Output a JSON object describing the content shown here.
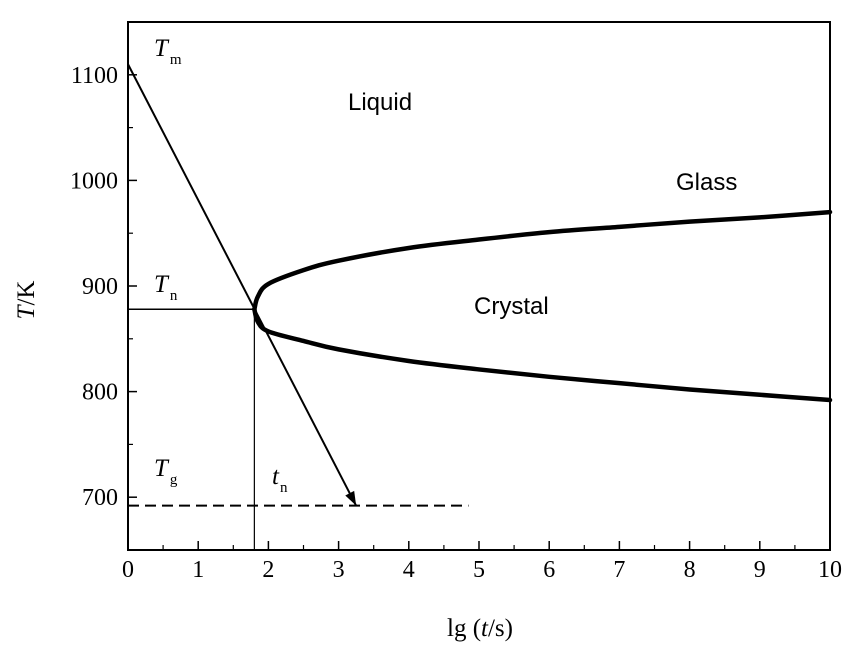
{
  "chart_data": {
    "type": "line",
    "xlabel_prefix": "lg (",
    "xlabel_var": "t",
    "xlabel_suffix": "/s)",
    "ylabel_var": "T",
    "ylabel_unit": "/K",
    "xlim": [
      0,
      10
    ],
    "ylim": [
      650,
      1150
    ],
    "x_ticks": [
      0,
      1,
      2,
      3,
      4,
      5,
      6,
      7,
      8,
      9,
      10
    ],
    "y_ticks": [
      700,
      800,
      900,
      1000,
      1100
    ],
    "grid": false,
    "regions": {
      "liquid": "Liquid",
      "glass": "Glass",
      "crystal": "Crystal"
    },
    "symbols": {
      "tm": {
        "base": "T",
        "sub": "m"
      },
      "tn": {
        "base": "T",
        "sub": "n"
      },
      "tg": {
        "base": "T",
        "sub": "g"
      },
      "t_n": {
        "base": "t",
        "sub": "n"
      }
    },
    "cooling_line": {
      "x": [
        0,
        3.25
      ],
      "y": [
        1110,
        692
      ]
    },
    "nose": {
      "x": 1.8,
      "y": 878
    },
    "tn_level": 878,
    "tg_level": 692,
    "tg_line_x_end": 4.85,
    "upper_curve": {
      "x": [
        1.8,
        1.85,
        2.0,
        2.5,
        3,
        4,
        5,
        6,
        7,
        8,
        9,
        10
      ],
      "y": [
        878,
        890,
        902,
        915,
        924,
        936,
        944,
        951,
        956,
        961,
        965,
        970
      ]
    },
    "lower_curve": {
      "x": [
        1.8,
        1.85,
        2.0,
        2.5,
        3,
        4,
        5,
        6,
        7,
        8,
        9,
        10
      ],
      "y": [
        878,
        866,
        857,
        848,
        840,
        829,
        821,
        814,
        808,
        802,
        797,
        792
      ]
    }
  }
}
